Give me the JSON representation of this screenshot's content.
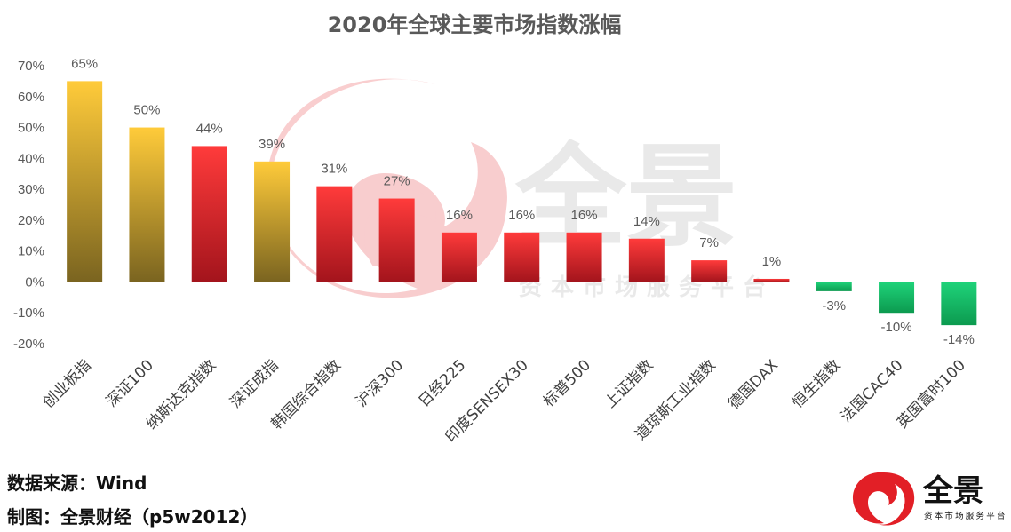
{
  "chart_data": {
    "type": "bar",
    "title": "2020年全球主要市场指数涨幅",
    "xlabel": "",
    "ylabel": "",
    "ylim": [
      -20,
      70
    ],
    "yticks": [
      "70%",
      "60%",
      "50%",
      "40%",
      "30%",
      "20%",
      "10%",
      "0%",
      "-10%",
      "-20%"
    ],
    "ytick_values": [
      70,
      60,
      50,
      40,
      30,
      20,
      10,
      0,
      -10,
      -20
    ],
    "categories": [
      "创业板指",
      "深证100",
      "纳斯达克指数",
      "深证成指",
      "韩国综合指数",
      "沪深300",
      "日经225",
      "印度SENSEX30",
      "标普500",
      "上证指数",
      "道琼斯工业指数",
      "德国DAX",
      "恒生指数",
      "法国CAC40",
      "英国富时100"
    ],
    "values": [
      65,
      50,
      44,
      39,
      31,
      27,
      16,
      16,
      16,
      14,
      7,
      1,
      -3,
      -10,
      -14
    ],
    "labels": [
      "65%",
      "50%",
      "44%",
      "39%",
      "31%",
      "27%",
      "16%",
      "16%",
      "16%",
      "14%",
      "7%",
      "1%",
      "-3%",
      "-10%",
      "-14%"
    ],
    "groups": [
      "gold",
      "gold",
      "red",
      "gold",
      "red",
      "red",
      "red",
      "red",
      "red",
      "red",
      "red",
      "red",
      "green",
      "green",
      "green"
    ],
    "colors": {
      "gold": [
        "#ffcb3a",
        "#7a6420"
      ],
      "red": [
        "#ff3b3b",
        "#a3141c"
      ],
      "green": [
        "#1fd37a",
        "#0c9a4f"
      ]
    },
    "grid": false
  },
  "watermark": {
    "brand": "全景",
    "tagline": "资本市场服务平台",
    "color": "#e21f26"
  },
  "footer": {
    "source": "数据来源：Wind",
    "credit": "制图：全景财经（p5w2012）"
  }
}
